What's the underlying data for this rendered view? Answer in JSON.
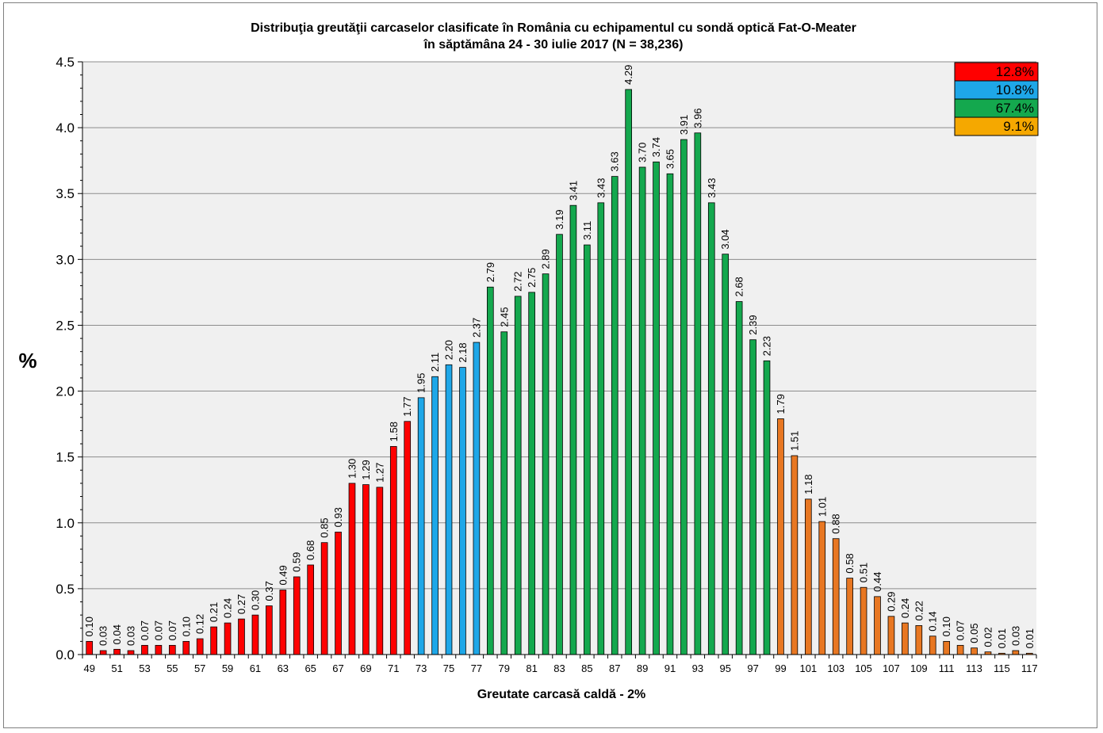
{
  "chart_data": {
    "type": "bar",
    "title": "Distribuţia greutăţii carcaselor clasificate în România cu echipamentul cu sondă optică Fat-O-Meater",
    "subtitle": "în săptămâna  24 - 30 iulie 2017 (N = 38,236)",
    "xlabel": "Greutate carcasă caldă - 2%",
    "ylabel": "%",
    "ylim": [
      0,
      4.5
    ],
    "yticks": [
      "0.0",
      "0.5",
      "1.0",
      "1.5",
      "2.0",
      "2.5",
      "3.0",
      "3.5",
      "4.0",
      "4.5"
    ],
    "grid": "horizontal",
    "x": [
      49,
      50,
      51,
      52,
      53,
      54,
      55,
      56,
      57,
      58,
      59,
      60,
      61,
      62,
      63,
      64,
      65,
      66,
      67,
      68,
      69,
      70,
      71,
      72,
      73,
      74,
      75,
      76,
      77,
      78,
      79,
      80,
      81,
      82,
      83,
      84,
      85,
      86,
      87,
      88,
      89,
      90,
      91,
      92,
      93,
      94,
      95,
      96,
      97,
      98,
      99,
      100,
      101,
      102,
      103,
      104,
      105,
      106,
      107,
      108,
      109,
      110,
      111,
      112,
      113,
      114,
      115,
      116,
      117
    ],
    "x_tick_labels": [
      "49",
      "51",
      "53",
      "55",
      "57",
      "59",
      "61",
      "63",
      "65",
      "67",
      "69",
      "71",
      "73",
      "75",
      "77",
      "79",
      "81",
      "83",
      "85",
      "87",
      "89",
      "91",
      "93",
      "95",
      "97",
      "99",
      "101",
      "103",
      "105",
      "107",
      "109",
      "111",
      "113",
      "115",
      "117"
    ],
    "values": [
      0.1,
      0.03,
      0.04,
      0.03,
      0.07,
      0.07,
      0.07,
      0.1,
      0.12,
      0.21,
      0.24,
      0.27,
      0.3,
      0.37,
      0.49,
      0.59,
      0.68,
      0.85,
      0.93,
      1.3,
      1.29,
      1.27,
      1.58,
      1.77,
      1.95,
      2.11,
      2.2,
      2.18,
      2.37,
      2.79,
      2.45,
      2.72,
      2.75,
      2.89,
      3.19,
      3.41,
      3.11,
      3.43,
      3.63,
      4.29,
      3.7,
      3.74,
      3.65,
      3.91,
      3.96,
      3.43,
      3.04,
      2.68,
      2.39,
      2.23,
      1.79,
      1.51,
      1.18,
      1.01,
      0.88,
      0.58,
      0.51,
      0.44,
      0.29,
      0.24,
      0.22,
      0.14,
      0.1,
      0.07,
      0.05,
      0.02,
      0.01,
      0.03,
      0.01
    ],
    "value_labels": [
      "0.10",
      "0.03",
      "0.04",
      "0.03",
      "0.07",
      "0.07",
      "0.07",
      "0.10",
      "0.12",
      "0.21",
      "0.24",
      "0.27",
      "0.30",
      "0.37",
      "0.49",
      "0.59",
      "0.68",
      "0.85",
      "0.93",
      "1.30",
      "1.29",
      "1.27",
      "1.58",
      "1.77",
      "1.95",
      "2.11",
      "2.20",
      "2.18",
      "2.37",
      "2.79",
      "2.45",
      "2.72",
      "2.75",
      "2.89",
      "3.19",
      "3.41",
      "3.11",
      "3.43",
      "3.63",
      "4.29",
      "3.70",
      "3.74",
      "3.65",
      "3.91",
      "3.96",
      "3.43",
      "3.04",
      "2.68",
      "2.39",
      "2.23",
      "1.79",
      "1.51",
      "1.18",
      "1.01",
      "0.88",
      "0.58",
      "0.51",
      "0.44",
      "0.29",
      "0.24",
      "0.22",
      "0.14",
      "0.10",
      "0.07",
      "0.05",
      "0.02",
      "0.01",
      "0.03",
      "0.01"
    ],
    "color_groups": [
      {
        "from": 49,
        "to": 72,
        "color": "#ff0000",
        "share": "12.8%"
      },
      {
        "from": 73,
        "to": 77,
        "color": "#1ea7e8",
        "share": "10.8%"
      },
      {
        "from": 78,
        "to": 98,
        "color": "#14a84e",
        "share": "67.4%"
      },
      {
        "from": 99,
        "to": 117,
        "color": "#e87722",
        "share": "9.1%"
      }
    ],
    "legend": {
      "placement": "top-right",
      "entries": [
        {
          "text": "12.8%",
          "color": "#ff0000"
        },
        {
          "text": "10.8%",
          "color": "#1ea7e8"
        },
        {
          "text": "67.4%",
          "color": "#14a84e"
        },
        {
          "text": "9.1%",
          "color": "#f5a800"
        }
      ]
    },
    "plot_background": "#f0f0f0"
  }
}
